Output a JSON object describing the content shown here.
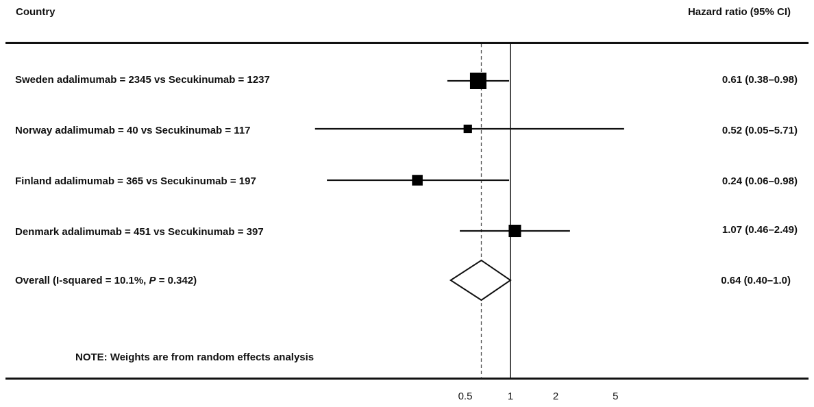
{
  "header": {
    "country": "Country",
    "hazard_ratio": "Hazard ratio (95% CI)"
  },
  "rows": [
    {
      "label": "Sweden adalimumab = 2345 vs Secukinumab = 1237",
      "hr_text": "0.61 (0.38–0.98)"
    },
    {
      "label": "Norway adalimumab = 40 vs Secukinumab = 117",
      "hr_text": "0.52 (0.05–5.71)"
    },
    {
      "label": "Finland adalimumab = 365 vs Secukinumab = 197",
      "hr_text": "0.24 (0.06–0.98)"
    },
    {
      "label": "Denmark adalimumab = 451 vs Secukinumab = 397",
      "hr_text": "1.07 (0.46–2.49)"
    }
  ],
  "overall": {
    "label_prefix": "Overall (I-squared = 10.1%, ",
    "label_p": "P",
    "label_suffix": " = 0.342)",
    "hr_text": "0.64 (0.40–1.0)"
  },
  "note": "NOTE: Weights are from random effects analysis",
  "chart_data": {
    "type": "forest",
    "x_scale": "log",
    "x_ticks": [
      0.5,
      1,
      2,
      5
    ],
    "x_tick_labels": [
      "0.5",
      "1",
      "2",
      "5"
    ],
    "reference_line": 1,
    "overall_dashed_line": 0.64,
    "studies": [
      {
        "name": "Sweden",
        "hr": 0.61,
        "lower": 0.38,
        "upper": 0.98,
        "weight": 1.0
      },
      {
        "name": "Norway",
        "hr": 0.52,
        "lower": 0.05,
        "upper": 5.71,
        "weight": 0.12
      },
      {
        "name": "Finland",
        "hr": 0.24,
        "lower": 0.06,
        "upper": 0.98,
        "weight": 0.28
      },
      {
        "name": "Denmark",
        "hr": 1.07,
        "lower": 0.46,
        "upper": 2.49,
        "weight": 0.45
      }
    ],
    "overall": {
      "hr": 0.64,
      "lower": 0.4,
      "upper": 1.0
    }
  }
}
